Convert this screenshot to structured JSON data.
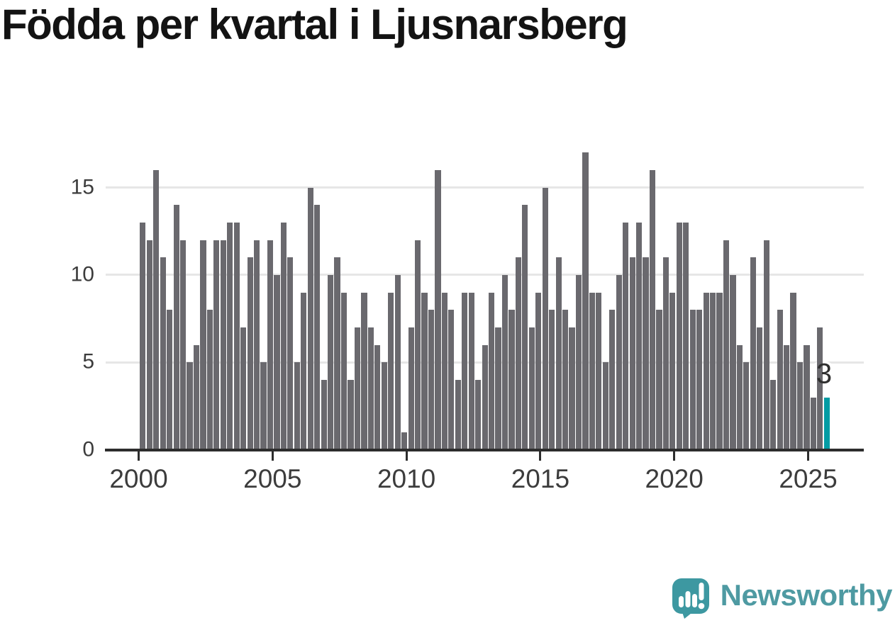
{
  "chart_data": {
    "type": "bar",
    "title": "Födda per kvartal i Ljusnarsberg",
    "x_frequency": "quarterly",
    "period_start": "2000 Q1",
    "period_end": "2025 Q3",
    "values": [
      13,
      12,
      16,
      11,
      8,
      14,
      12,
      5,
      6,
      12,
      8,
      12,
      12,
      13,
      13,
      7,
      11,
      12,
      5,
      12,
      10,
      13,
      11,
      5,
      9,
      15,
      14,
      4,
      10,
      11,
      9,
      4,
      7,
      9,
      7,
      6,
      5,
      9,
      10,
      1,
      7,
      12,
      9,
      8,
      16,
      9,
      8,
      4,
      9,
      9,
      4,
      6,
      9,
      7,
      10,
      8,
      11,
      14,
      7,
      9,
      15,
      8,
      11,
      8,
      7,
      10,
      17,
      9,
      9,
      5,
      8,
      10,
      13,
      11,
      13,
      11,
      16,
      8,
      11,
      9,
      13,
      13,
      8,
      8,
      9,
      9,
      9,
      12,
      10,
      6,
      5,
      11,
      7,
      12,
      4,
      8,
      6,
      9,
      5,
      6,
      3,
      7,
      3
    ],
    "highlight": {
      "index": 102,
      "label": "3",
      "color": "#039ca4",
      "badge_bg": "#ffffff"
    },
    "bar_color": "#6a696e",
    "xticks": [
      "2000",
      "2005",
      "2010",
      "2015",
      "2020",
      "2025"
    ],
    "yticks": [
      "0",
      "5",
      "10",
      "15"
    ],
    "ylim": [
      0,
      17
    ],
    "grid": true,
    "legend": "none",
    "axis_color": "#2d2d2d",
    "gridline_color": "#e6e6e6",
    "tick_label_color": "#3c3c3c"
  },
  "branding": {
    "name": "Newsworthy",
    "mark_color": "#3d98a1",
    "text_color": "#4e9aa2"
  }
}
